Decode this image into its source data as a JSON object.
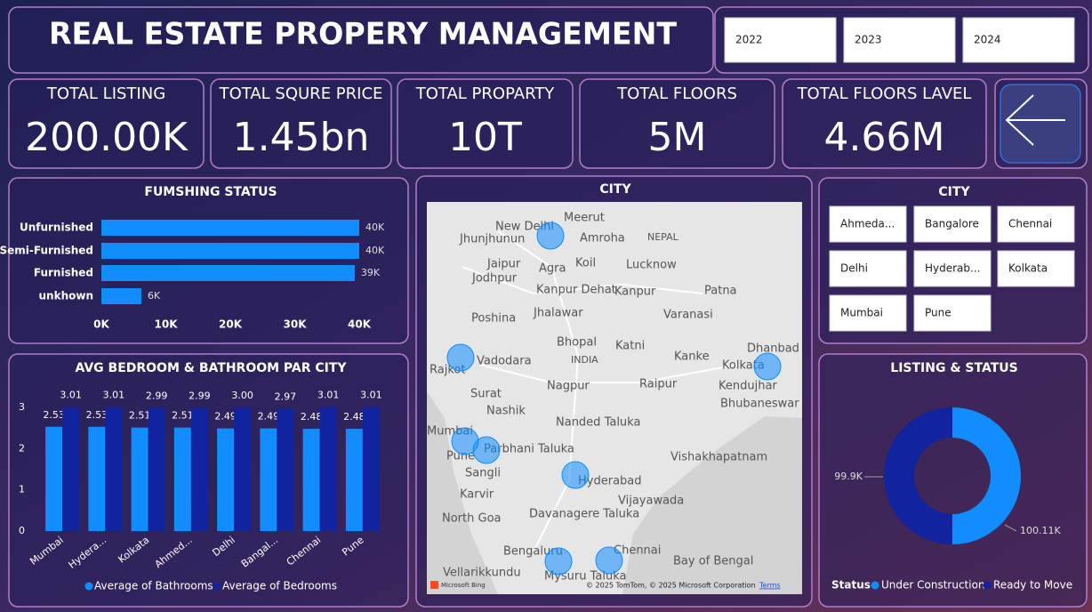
{
  "header": {
    "title": "REAL ESTATE PROPERY MANAGEMENT",
    "years": [
      "2022",
      "2023",
      "2024"
    ]
  },
  "kpis": [
    {
      "label": "TOTAL LISTING",
      "value": "200.00K"
    },
    {
      "label": "TOTAL SQURE PRICE",
      "value": "1.45bn"
    },
    {
      "label": "TOTAL PROPARTY",
      "value": "10T"
    },
    {
      "label": "TOTAL FLOORS",
      "value": "5M"
    },
    {
      "label": "TOTAL FLOORS LAVEL",
      "value": "4.66M"
    }
  ],
  "city_slicer": {
    "title": "CITY",
    "options": [
      "Ahmeda...",
      "Bangalore",
      "Chennai",
      "Delhi",
      "Hyderab...",
      "Kolkata",
      "Mumbai",
      "Pune"
    ]
  },
  "map": {
    "title": "CITY",
    "labels": [
      "New Delhi",
      "Meerut",
      "Amroha",
      "NEPAL",
      "Jaipur",
      "Agra",
      "Koil",
      "Lucknow",
      "Jodhpur",
      "Kanpur Dehat",
      "Kanpur",
      "Patna",
      "Jhunjhunun",
      "Poshina",
      "Jhalawar",
      "Varanasi",
      "Bhopal",
      "Katni",
      "INDIA",
      "Kanke",
      "Dhanbad",
      "Kolkata",
      "Vadodara",
      "Rajkot",
      "Surat",
      "Nagpur",
      "Raipur",
      "Kendujhar",
      "Nashik",
      "Nanded Taluka",
      "Bhubaneswar",
      "Mumbai",
      "Parbhani Taluka",
      "Pune",
      "Sangli",
      "Hyderabad",
      "Vishakhapatnam",
      "Karvir",
      "Vijayawada",
      "North Goa",
      "Davanagere Taluka",
      "Bengaluru",
      "Chennai",
      "Bay of Bengal",
      "Vellarikkundu",
      "Mysuru Taluka"
    ],
    "attribution": "© 2025 TomTom, © 2025 Microsoft Corporation",
    "terms": "Terms",
    "logo": "Microsoft Bing"
  },
  "chart_data": [
    {
      "type": "hbar",
      "title": "FUMSHING STATUS",
      "categories": [
        "Unfurnished",
        "Semi-Furnished",
        "Furnished",
        "unkhown"
      ],
      "values": [
        40000,
        40000,
        39300,
        6200
      ],
      "value_labels": [
        "40K",
        "40K",
        "39K",
        "6K"
      ],
      "color": "#118dff",
      "xlim": [
        0,
        40000
      ],
      "xticks": [
        {
          "value": 0,
          "label": "0K"
        },
        {
          "value": 10000,
          "label": "10K"
        },
        {
          "value": 20000,
          "label": "20K"
        },
        {
          "value": 30000,
          "label": "30K"
        },
        {
          "value": 40000,
          "label": "40K"
        }
      ]
    },
    {
      "type": "grouped_bar",
      "title": "AVG BEDROOM & BATHROOM PAR CITY",
      "categories": [
        "Mumbai",
        "Hydera...",
        "Kolkata",
        "Ahmed...",
        "Delhi",
        "Bangal...",
        "Chennai",
        "Pune"
      ],
      "series": [
        {
          "name": "Average of Bathrooms",
          "color": "#118dff",
          "values": [
            2.53,
            2.53,
            2.51,
            2.51,
            2.49,
            2.49,
            2.48,
            2.48
          ],
          "value_labels": [
            "2.53",
            "2.53",
            "2.51",
            "2.51",
            "2.49",
            "2.49",
            "2.48",
            "2.48"
          ]
        },
        {
          "name": "Average of Bedrooms",
          "color": "#12239e",
          "values": [
            3.01,
            3.01,
            2.99,
            2.99,
            3.0,
            2.97,
            3.01,
            3.01
          ],
          "value_labels": [
            "3.01",
            "3.01",
            "2.99",
            "2.99",
            "3.00",
            "2.97",
            "3.01",
            "3.01"
          ]
        }
      ],
      "ylim": [
        0,
        3.2
      ],
      "yticks": [
        0,
        1,
        2,
        3
      ]
    },
    {
      "type": "donut",
      "title": "LISTING & STATUS",
      "legend_title": "Status",
      "categories": [
        "Under Construction",
        "Ready to Move"
      ],
      "values": [
        100110,
        99900
      ],
      "value_labels": [
        "100.11K",
        "99.9K"
      ],
      "colors": [
        "#118dff",
        "#12239e"
      ]
    }
  ]
}
